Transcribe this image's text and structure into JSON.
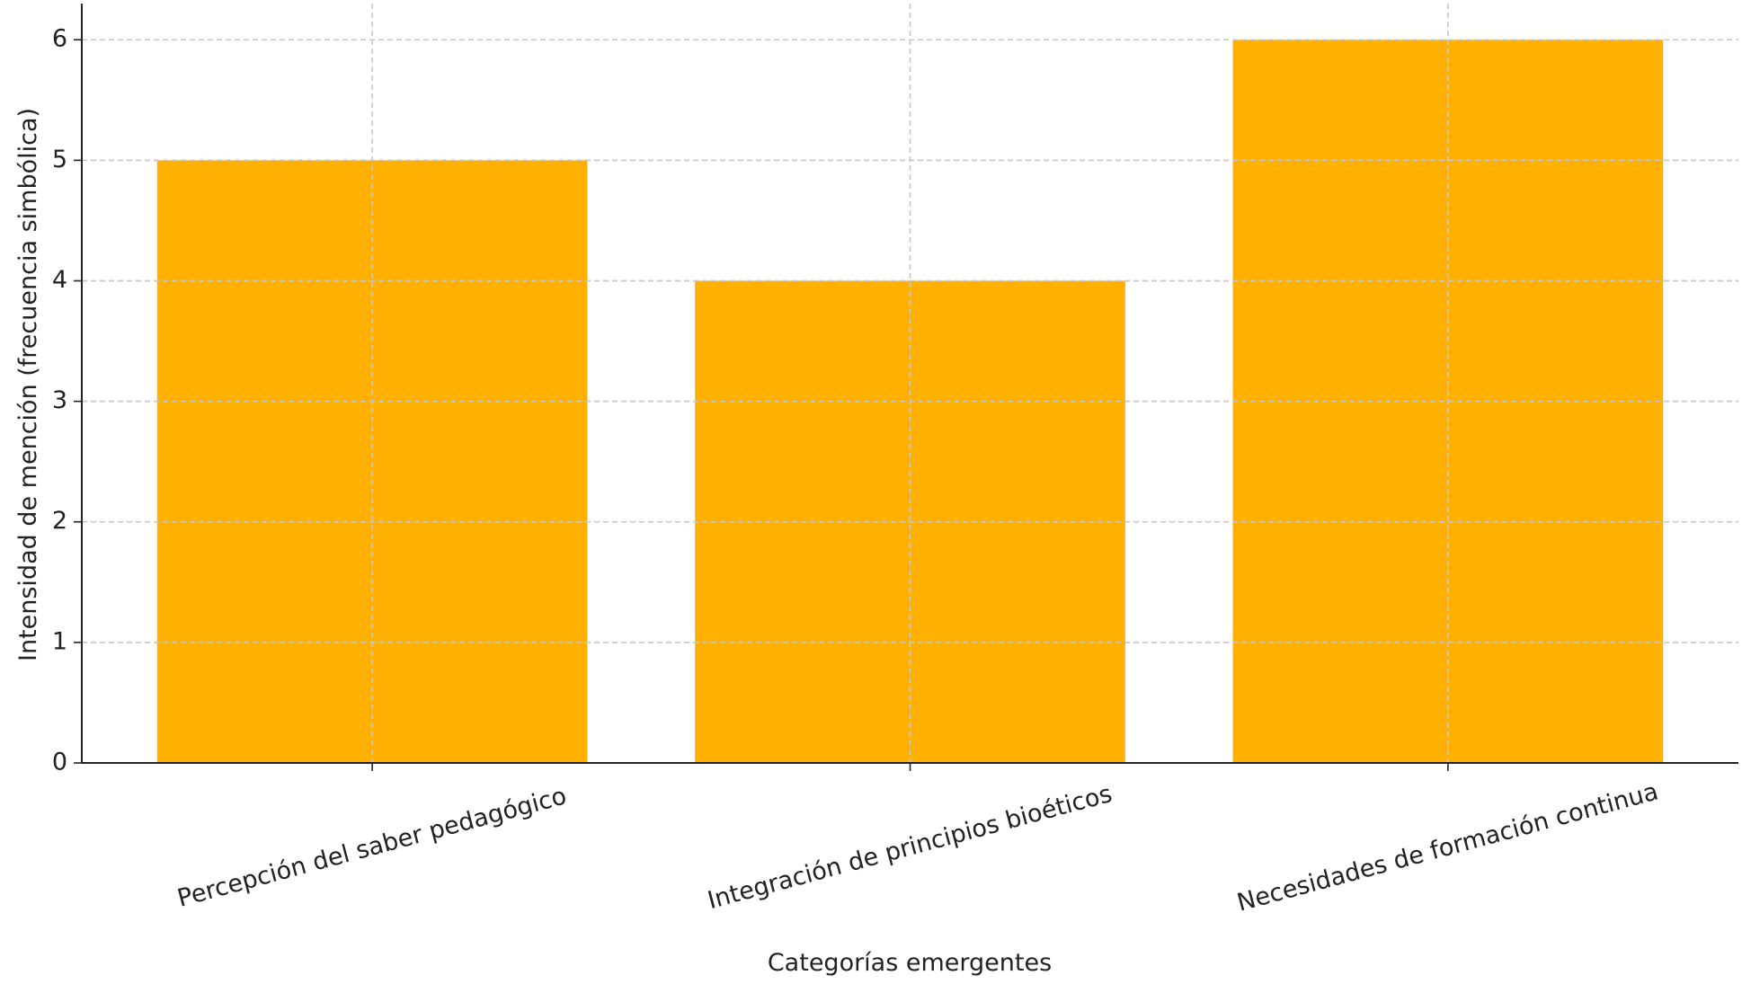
{
  "chart_data": {
    "type": "bar",
    "xlabel": "Categorías emergentes",
    "ylabel": "Intensidad de mención (frecuencia simbólica)",
    "categories": [
      "Percepción del saber pedagógico",
      "Integración de principios bioéticos",
      "Necesidades de formación continua"
    ],
    "values": [
      5,
      4,
      6
    ],
    "color": "#ffb000",
    "ylim": [
      0,
      6.3
    ],
    "yticks": [
      0,
      1,
      2,
      3,
      4,
      5,
      6
    ],
    "grid": true
  }
}
